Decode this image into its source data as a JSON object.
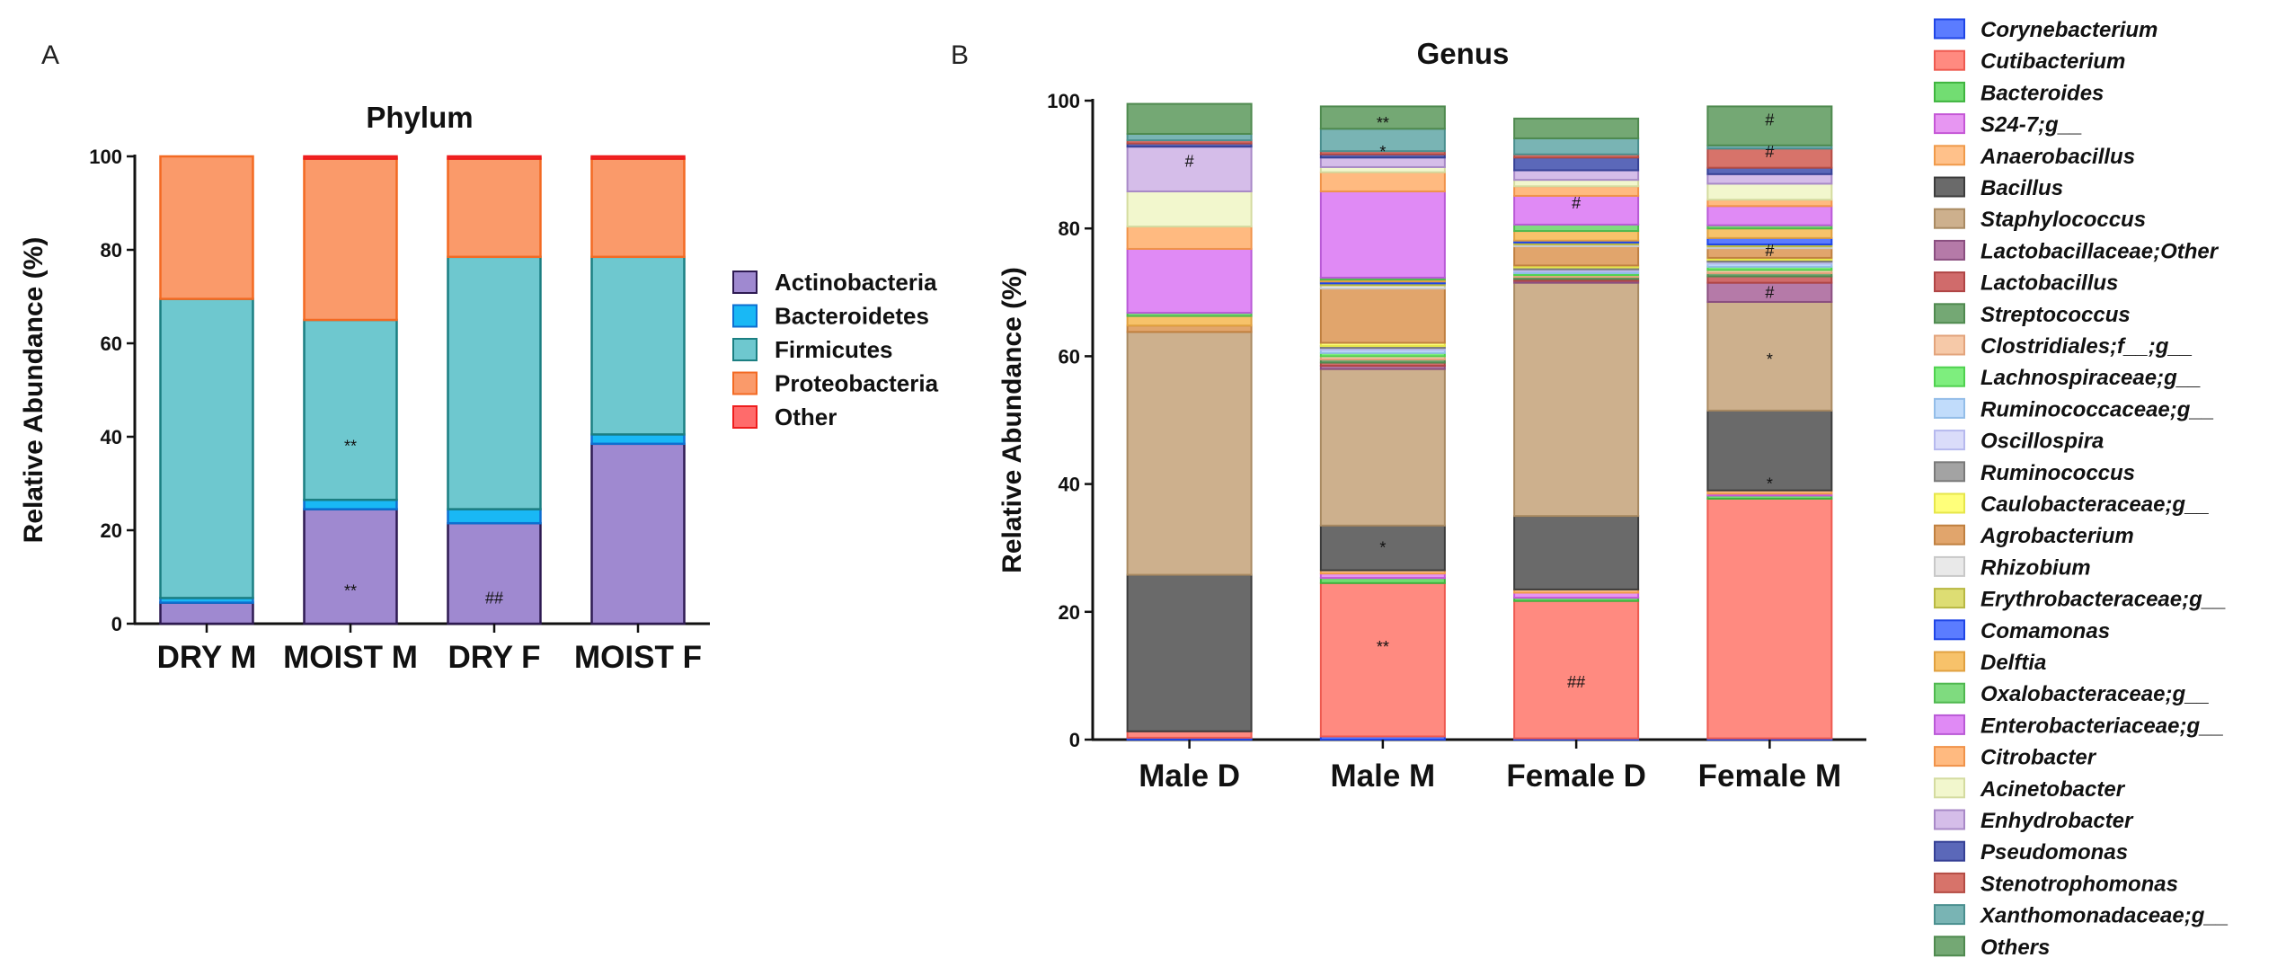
{
  "panel_a_label": "A",
  "panel_b_label": "B",
  "chart_data": [
    {
      "type": "bar",
      "stacked": true,
      "title": "Phylum",
      "ylabel": "Relative Abundance (%)",
      "xlabel": "",
      "ylim": [
        0,
        100
      ],
      "yticks": [
        0,
        20,
        40,
        60,
        80,
        100
      ],
      "categories": [
        "DRY M",
        "MOIST M",
        "DRY F",
        "MOIST F"
      ],
      "legend_position": "right",
      "series": [
        {
          "name": "Actinobacteria",
          "color": "#9f89d0",
          "edge": "#2e1a52",
          "values": [
            4.5,
            24.5,
            21.5,
            38.5
          ]
        },
        {
          "name": "Bacteroidetes",
          "color": "#19b8f5",
          "edge": "#0d6fd1",
          "values": [
            1.0,
            2.0,
            3.0,
            2.0
          ]
        },
        {
          "name": "Firmicutes",
          "color": "#6ec8cf",
          "edge": "#1b7f82",
          "values": [
            64.0,
            38.5,
            54.0,
            38.0
          ]
        },
        {
          "name": "Proteobacteria",
          "color": "#fa9a6a",
          "edge": "#f36a23",
          "values": [
            30.5,
            34.5,
            21.0,
            21.0
          ]
        },
        {
          "name": "Other",
          "color": "#ff6b6b",
          "edge": "#ee1d1d",
          "values": [
            0,
            0.5,
            0.5,
            0.5
          ]
        }
      ],
      "annotations": [
        {
          "category": "MOIST M",
          "y": 7,
          "text": "**"
        },
        {
          "category": "MOIST M",
          "y": 38,
          "text": "**"
        },
        {
          "category": "DRY F",
          "y": 5.5,
          "text": "##"
        }
      ]
    },
    {
      "type": "bar",
      "stacked": true,
      "title": "Genus",
      "ylabel": "Relative Abundance (%)",
      "xlabel": "",
      "ylim": [
        0,
        100
      ],
      "yticks": [
        0,
        20,
        40,
        60,
        80,
        100
      ],
      "categories": [
        "Male D",
        "Male M",
        "Female D",
        "Female M"
      ],
      "legend_position": "right",
      "series": [
        {
          "name": "Corynebacterium",
          "color": "#5b7cff",
          "edge": "#1f45e6",
          "values": [
            0.3,
            0.5,
            0.2,
            0.2
          ]
        },
        {
          "name": "Cutibacterium",
          "color": "#ff8a80",
          "edge": "#ee5a50",
          "values": [
            1.0,
            24.0,
            21.5,
            37.5
          ]
        },
        {
          "name": "Bacteroides",
          "color": "#72dd72",
          "edge": "#3fb53f",
          "values": [
            0,
            0.8,
            0.5,
            0.5
          ]
        },
        {
          "name": "S24-7;g__",
          "color": "#e796f2",
          "edge": "#c557d6",
          "values": [
            0,
            0.7,
            0.8,
            0.3
          ]
        },
        {
          "name": "Anaerobacillus",
          "color": "#ffc18a",
          "edge": "#f09a4a",
          "values": [
            0,
            0.5,
            0.5,
            0.5
          ]
        },
        {
          "name": "Bacillus",
          "color": "#6a6a6a",
          "edge": "#3c3c3c",
          "values": [
            24.5,
            7.0,
            11.5,
            12.5
          ]
        },
        {
          "name": "Staphylococcus",
          "color": "#cdb08d",
          "edge": "#a98a62",
          "values": [
            38.0,
            24.5,
            36.5,
            17.0
          ]
        },
        {
          "name": "Lactobacillaceae;Other",
          "color": "#b57aa8",
          "edge": "#8a4f80",
          "values": [
            0,
            0.5,
            0.3,
            3.0
          ]
        },
        {
          "name": "Lactobacillus",
          "color": "#d06b6b",
          "edge": "#b04545",
          "values": [
            0,
            0.5,
            0.3,
            1.0
          ]
        },
        {
          "name": "Streptococcus",
          "color": "#74a874",
          "edge": "#4f8a4f",
          "values": [
            0,
            0.5,
            0.3,
            0.5
          ]
        },
        {
          "name": "Clostridiales;f__;g__",
          "color": "#f6c9a8",
          "edge": "#e3a47c",
          "values": [
            0,
            0.5,
            0.3,
            0.5
          ]
        },
        {
          "name": "Lachnospiraceae;g__",
          "color": "#7eee7e",
          "edge": "#4fd14f",
          "values": [
            0,
            0.5,
            0.3,
            0.5
          ]
        },
        {
          "name": "Ruminococcaceae;g__",
          "color": "#c1dcfb",
          "edge": "#93bde8",
          "values": [
            0,
            0.5,
            0.3,
            0.5
          ]
        },
        {
          "name": "Oscillospira",
          "color": "#dadcfa",
          "edge": "#b6b9ee",
          "values": [
            0,
            0.3,
            0.3,
            0.3
          ]
        },
        {
          "name": "Ruminococcus",
          "color": "#a3a3a3",
          "edge": "#7a7a7a",
          "values": [
            0,
            0.3,
            0.3,
            0.3
          ]
        },
        {
          "name": "Caulobacteraceae;g__",
          "color": "#ffff7a",
          "edge": "#e6e64a",
          "values": [
            0,
            0.5,
            0.3,
            0.3
          ]
        },
        {
          "name": "Agrobacterium",
          "color": "#e1a56c",
          "edge": "#c08040",
          "values": [
            1.0,
            8.5,
            3.0,
            1.5
          ]
        },
        {
          "name": "Rhizobium",
          "color": "#e9e9e9",
          "edge": "#c8c8c8",
          "values": [
            0,
            0.5,
            0.3,
            0.3
          ]
        },
        {
          "name": "Erythrobacteraceae;g__",
          "color": "#dddd73",
          "edge": "#b8b843",
          "values": [
            0,
            0.3,
            0.3,
            0.3
          ]
        },
        {
          "name": "Comamonas",
          "color": "#5b7cff",
          "edge": "#1f45e6",
          "values": [
            0,
            0.3,
            0.3,
            1.0
          ]
        },
        {
          "name": "Delftia",
          "color": "#f7c26a",
          "edge": "#e0a040",
          "values": [
            1.5,
            0.3,
            1.5,
            1.5
          ]
        },
        {
          "name": "Oxalobacteraceae;g__",
          "color": "#7fdb7f",
          "edge": "#4fb84f",
          "values": [
            0.5,
            0.3,
            1.0,
            0.5
          ]
        },
        {
          "name": "Enterobacteriaceae;g__",
          "color": "#e08af5",
          "edge": "#b95ad6",
          "values": [
            10.0,
            13.5,
            4.5,
            3.0
          ]
        },
        {
          "name": "Citrobacter",
          "color": "#ffba80",
          "edge": "#f0934a",
          "values": [
            3.5,
            3.0,
            1.5,
            1.0
          ]
        },
        {
          "name": "Acinetobacter",
          "color": "#f2f7cd",
          "edge": "#d4dba0",
          "values": [
            5.5,
            0.8,
            1.0,
            2.5
          ]
        },
        {
          "name": "Enhydrobacter",
          "color": "#d5bde9",
          "edge": "#a889c7",
          "values": [
            7.0,
            1.5,
            1.5,
            1.5
          ]
        },
        {
          "name": "Pseudomonas",
          "color": "#5b68b9",
          "edge": "#364196",
          "values": [
            0.5,
            0.5,
            2.0,
            1.0
          ]
        },
        {
          "name": "Stenotrophomonas",
          "color": "#d7736a",
          "edge": "#b44c44",
          "values": [
            0.5,
            0.5,
            0.5,
            3.0
          ]
        },
        {
          "name": "Xanthomonadaceae;g__",
          "color": "#79b4b4",
          "edge": "#4a8f8f",
          "values": [
            1.0,
            3.5,
            2.5,
            0.5
          ]
        },
        {
          "name": "Others",
          "color": "#74a874",
          "edge": "#4f8a4f",
          "values": [
            4.7,
            3.5,
            3.1,
            6.1
          ]
        }
      ],
      "annotations": [
        {
          "category": "Male D",
          "y": 90.5,
          "text": "#"
        },
        {
          "category": "Male M",
          "y": 14.5,
          "text": "**"
        },
        {
          "category": "Male M",
          "y": 30,
          "text": "*"
        },
        {
          "category": "Male M",
          "y": 92,
          "text": "*"
        },
        {
          "category": "Male M",
          "y": 96.5,
          "text": "**"
        },
        {
          "category": "Female D",
          "y": 9,
          "text": "##"
        },
        {
          "category": "Female D",
          "y": 84,
          "text": "#"
        },
        {
          "category": "Female M",
          "y": 40,
          "text": "*"
        },
        {
          "category": "Female M",
          "y": 59.5,
          "text": "*"
        },
        {
          "category": "Female M",
          "y": 70,
          "text": "#"
        },
        {
          "category": "Female M",
          "y": 76.5,
          "text": "#"
        },
        {
          "category": "Female M",
          "y": 92,
          "text": "#"
        },
        {
          "category": "Female M",
          "y": 97,
          "text": "#"
        }
      ]
    }
  ]
}
